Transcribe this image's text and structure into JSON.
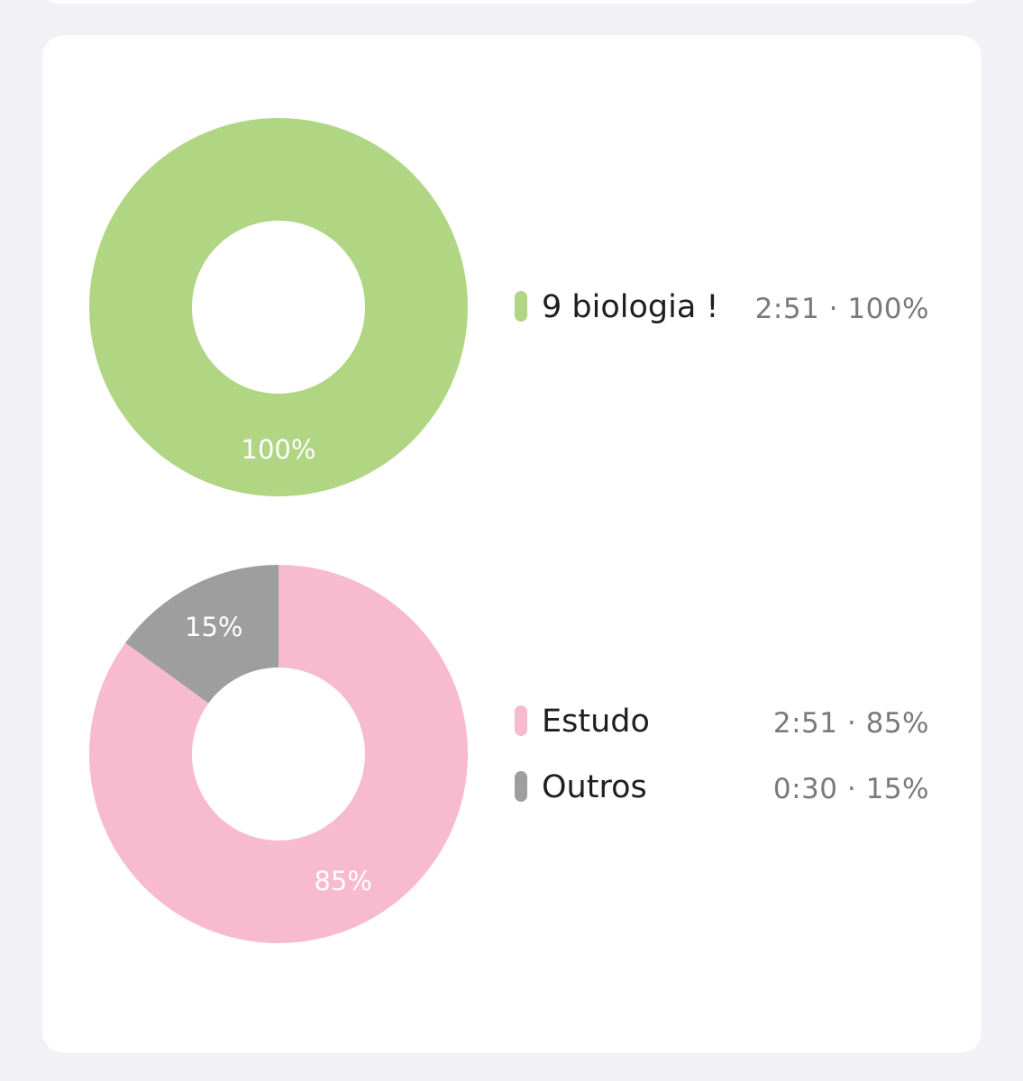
{
  "chart_data": [
    {
      "type": "pie",
      "slices": [
        {
          "name": "9 biologia !",
          "value": 100,
          "label": "100%",
          "color": "#b0d684"
        }
      ],
      "legend": [
        {
          "name": "9 biologia !",
          "time": "2:51",
          "percent": "100%",
          "color": "#b0d684"
        }
      ]
    },
    {
      "type": "pie",
      "slices": [
        {
          "name": "Estudo",
          "value": 85,
          "label": "85%",
          "color": "#f7bace"
        },
        {
          "name": "Outros",
          "value": 15,
          "label": "15%",
          "color": "#9e9e9e"
        }
      ],
      "legend": [
        {
          "name": "Estudo",
          "time": "2:51",
          "percent": "85%",
          "color": "#f7bace"
        },
        {
          "name": "Outros",
          "time": "0:30",
          "percent": "15%",
          "color": "#9e9e9e"
        }
      ]
    }
  ],
  "legend_separator": "·"
}
